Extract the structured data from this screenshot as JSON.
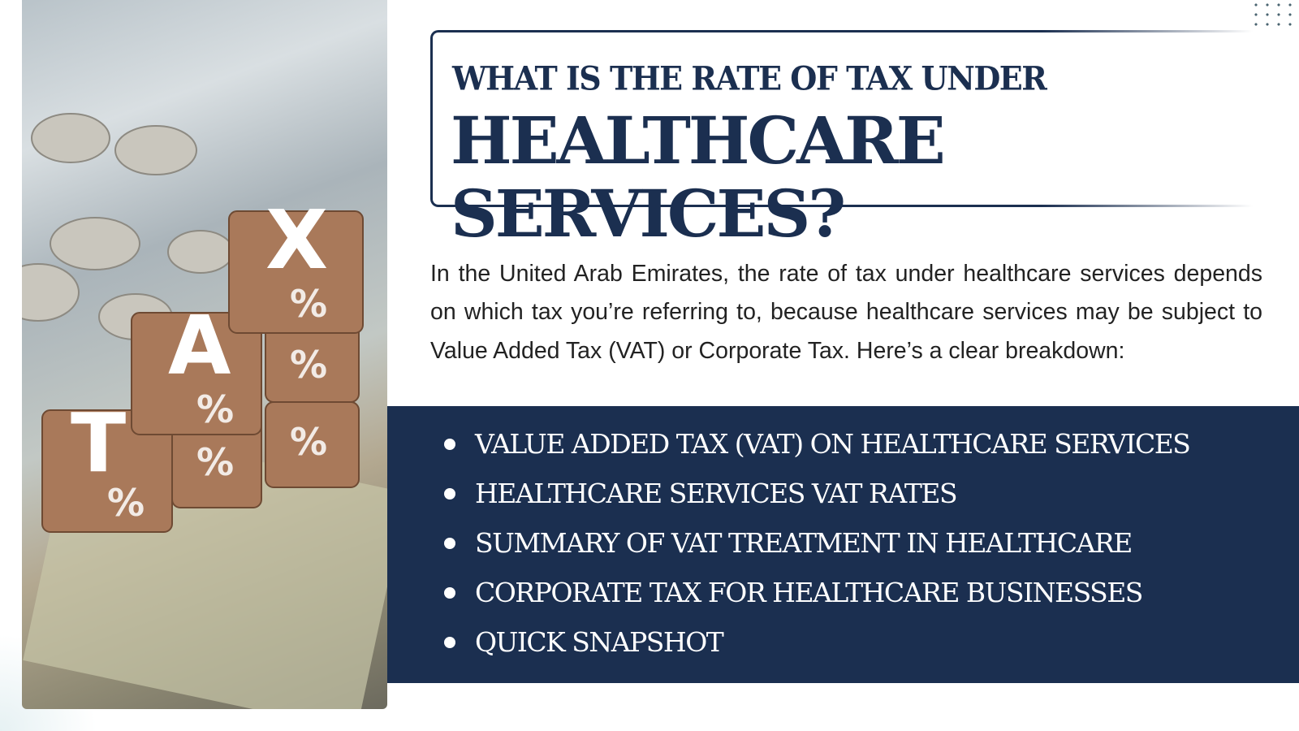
{
  "image": {
    "label_letters": [
      "T",
      "A",
      "X"
    ],
    "alt": "TAX"
  },
  "title": {
    "line1": "WHAT IS THE RATE OF TAX UNDER",
    "line2": "HEALTHCARE SERVICES?"
  },
  "intro": "In the United Arab Emirates, the rate of tax under healthcare services depends on which tax you’re referring to, because healthcare services may be subject to Value Added Tax (VAT) or Corporate Tax. Here’s a clear breakdown:",
  "topics": [
    "VALUE ADDED TAX (VAT) ON HEALTHCARE SERVICES",
    "HEALTHCARE SERVICES VAT RATES",
    "SUMMARY OF VAT TREATMENT IN HEALTHCARE",
    "CORPORATE TAX FOR HEALTHCARE BUSINESSES",
    "QUICK SNAPSHOT"
  ],
  "colors": {
    "navy": "#1b2f50",
    "wood": "#a9795a"
  }
}
